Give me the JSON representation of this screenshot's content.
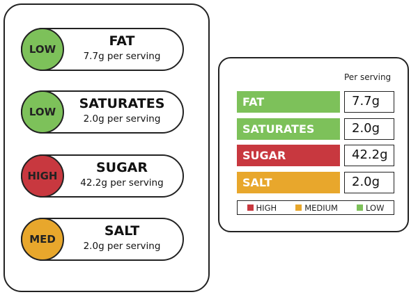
{
  "front_labels": [
    {
      "level": "LOW",
      "name": "FAT",
      "amount": "7.7g per serving"
    },
    {
      "level": "LOW",
      "name": "SATURATES",
      "amount": "2.0g per serving"
    },
    {
      "level": "HIGH",
      "name": "SUGAR",
      "amount": "42.2g per serving"
    },
    {
      "level": "MED",
      "name": "SALT",
      "amount": "2.0g per serving"
    }
  ],
  "back_label": {
    "header": "Per serving",
    "rows": [
      {
        "name": "FAT",
        "value": "7.7g"
      },
      {
        "name": "SATURATES",
        "value": "2.0g"
      },
      {
        "name": "SUGAR",
        "value": "42.2g"
      },
      {
        "name": "SALT",
        "value": "2.0g"
      }
    ],
    "legend": [
      "HIGH",
      "MEDIUM",
      "LOW"
    ]
  }
}
